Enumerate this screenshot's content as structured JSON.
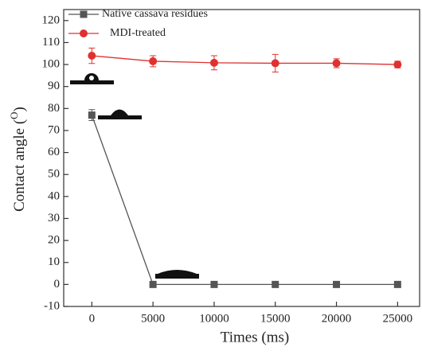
{
  "chart_data": {
    "type": "line",
    "x_label": "Times (ms)",
    "y_label_parts": [
      "Contact angle (",
      "O",
      ")"
    ],
    "x": [
      0,
      5000,
      10000,
      15000,
      20000,
      25000
    ],
    "series": [
      {
        "name": "Native cassava residues",
        "color": "#555555",
        "marker": "square",
        "values": [
          77,
          0,
          0,
          0,
          0,
          0
        ],
        "errors": [
          2.5,
          0,
          0,
          0,
          0,
          0
        ]
      },
      {
        "name": "MDI-treated",
        "color": "#e03131",
        "marker": "circle",
        "values": [
          104,
          101.5,
          100.8,
          100.6,
          100.6,
          100
        ],
        "errors": [
          3.5,
          2.5,
          3.2,
          4,
          2,
          1.5
        ]
      }
    ],
    "xlim": [
      -2300,
      26800
    ],
    "ylim": [
      -10,
      125
    ],
    "xticks": [
      0,
      5000,
      10000,
      15000,
      20000,
      25000
    ],
    "yticks": [
      -10,
      0,
      10,
      20,
      30,
      40,
      50,
      60,
      70,
      80,
      90,
      100,
      110,
      120
    ],
    "legend": "upper left"
  }
}
